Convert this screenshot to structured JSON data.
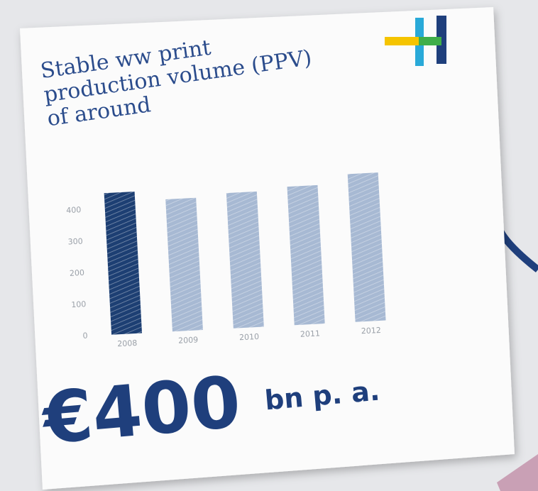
{
  "chart_data": {
    "type": "bar",
    "title": "Stable ww print production volume (PPV) of around",
    "headline": "€400",
    "headline_unit": "bn p. a.",
    "categories": [
      "2008",
      "2009",
      "2010",
      "2011",
      "2012"
    ],
    "values": [
      450,
      420,
      430,
      440,
      470
    ],
    "colors": [
      "#1d3f73",
      "#a7b9d3",
      "#a7b9d3",
      "#a7b9d3",
      "#a7b9d3"
    ],
    "ylim": [
      0,
      500
    ],
    "yticks": [
      0,
      100,
      200,
      300,
      400
    ],
    "grid": false
  }
}
